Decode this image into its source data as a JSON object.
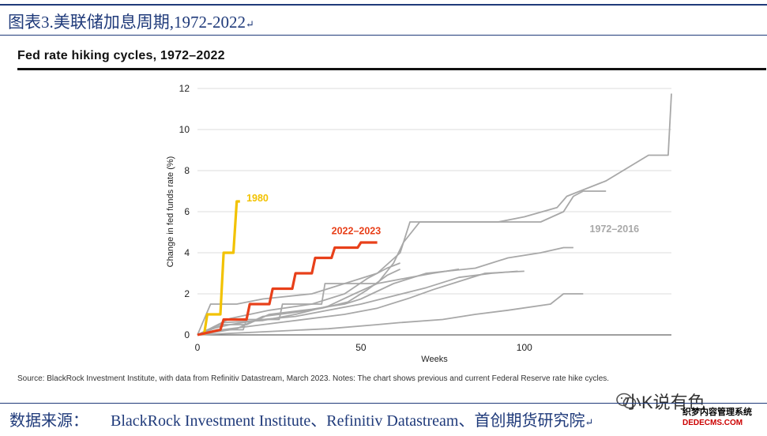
{
  "caption": {
    "text": "图表3.美联储加息周期,1972-2022",
    "return_mark": "↵"
  },
  "chart_data": {
    "type": "line",
    "title": "Fed rate hiking cycles, 1972–2022",
    "xlabel": "Weeks",
    "ylabel": "Change in fed funds rate (%)",
    "xlim": [
      0,
      145
    ],
    "ylim": [
      0,
      12
    ],
    "xticks": [
      0,
      50,
      100
    ],
    "yticks": [
      0,
      2,
      4,
      6,
      8,
      10,
      12
    ],
    "grid": true,
    "series": [
      {
        "name": "1980",
        "label": "1980",
        "color": "#f2c200",
        "role": "highlight",
        "points": [
          [
            2,
            0
          ],
          [
            3,
            1
          ],
          [
            7,
            1
          ],
          [
            8,
            4
          ],
          [
            11,
            4
          ],
          [
            12,
            6.5
          ],
          [
            13,
            6.5
          ]
        ]
      },
      {
        "name": "2022–2023",
        "label": "2022–2023",
        "color": "#e8401a",
        "role": "highlight",
        "points": [
          [
            0,
            0
          ],
          [
            7,
            0.25
          ],
          [
            8,
            0.75
          ],
          [
            15,
            0.75
          ],
          [
            16,
            1.5
          ],
          [
            22,
            1.5
          ],
          [
            23,
            2.25
          ],
          [
            29,
            2.25
          ],
          [
            30,
            3.0
          ],
          [
            35,
            3.0
          ],
          [
            36,
            3.75
          ],
          [
            41,
            3.75
          ],
          [
            42,
            4.25
          ],
          [
            49,
            4.25
          ],
          [
            50,
            4.5
          ],
          [
            55,
            4.5
          ]
        ]
      },
      {
        "name": "1972-2016 a",
        "color": "#a8a8a8",
        "role": "history",
        "points": [
          [
            0,
            0
          ],
          [
            6,
            0.25
          ],
          [
            14,
            0.25
          ],
          [
            15,
            0.75
          ],
          [
            25,
            0.75
          ],
          [
            26,
            1.5
          ],
          [
            38,
            1.5
          ],
          [
            39,
            2.5
          ],
          [
            55,
            2.5
          ],
          [
            60,
            3.5
          ],
          [
            63,
            4.5
          ],
          [
            68,
            5.5
          ],
          [
            92,
            5.5
          ],
          [
            100,
            5.75
          ],
          [
            110,
            6.2
          ],
          [
            113,
            6.75
          ],
          [
            125,
            7.5
          ],
          [
            138,
            8.75
          ],
          [
            144,
            8.75
          ],
          [
            145,
            11.75
          ],
          [
            150,
            11.75
          ]
        ]
      },
      {
        "name": "1972-2016 b",
        "color": "#a8a8a8",
        "role": "history",
        "points": [
          [
            0,
            0
          ],
          [
            4,
            1.5
          ],
          [
            12,
            1.5
          ],
          [
            20,
            1.75
          ],
          [
            35,
            2.0
          ],
          [
            45,
            2.5
          ],
          [
            55,
            3.0
          ],
          [
            62,
            4.0
          ],
          [
            65,
            5.5
          ],
          [
            105,
            5.5
          ],
          [
            112,
            6.0
          ],
          [
            115,
            6.75
          ],
          [
            118,
            7.0
          ],
          [
            125,
            7.0
          ]
        ]
      },
      {
        "name": "1972-2016 c",
        "color": "#a8a8a8",
        "role": "history",
        "points": [
          [
            0,
            0
          ],
          [
            8,
            0.5
          ],
          [
            15,
            0.5
          ],
          [
            22,
            1.0
          ],
          [
            35,
            1.25
          ],
          [
            45,
            1.5
          ],
          [
            50,
            1.75
          ],
          [
            60,
            2.5
          ],
          [
            70,
            3.0
          ],
          [
            85,
            3.25
          ],
          [
            95,
            3.75
          ],
          [
            105,
            4.0
          ],
          [
            112,
            4.25
          ],
          [
            115,
            4.25
          ]
        ]
      },
      {
        "name": "1972-2016 d",
        "color": "#a8a8a8",
        "role": "history",
        "points": [
          [
            0,
            0
          ],
          [
            3,
            0.25
          ],
          [
            10,
            0.5
          ],
          [
            20,
            0.75
          ],
          [
            30,
            0.9
          ],
          [
            40,
            1.2
          ],
          [
            50,
            1.5
          ],
          [
            60,
            1.9
          ],
          [
            70,
            2.3
          ],
          [
            80,
            2.8
          ],
          [
            90,
            3.0
          ],
          [
            98,
            3.1
          ]
        ]
      },
      {
        "name": "1972-2016 e",
        "color": "#a8a8a8",
        "role": "history",
        "points": [
          [
            0,
            0
          ],
          [
            5,
            0.2
          ],
          [
            15,
            0.4
          ],
          [
            25,
            0.6
          ],
          [
            35,
            0.8
          ],
          [
            45,
            1.0
          ],
          [
            55,
            1.3
          ],
          [
            65,
            1.8
          ],
          [
            72,
            2.2
          ],
          [
            80,
            2.6
          ],
          [
            88,
            3.0
          ],
          [
            100,
            3.1
          ]
        ]
      },
      {
        "name": "1972-2016 f",
        "color": "#a8a8a8",
        "role": "history",
        "points": [
          [
            0,
            0
          ],
          [
            8,
            0.6
          ],
          [
            20,
            0.7
          ],
          [
            30,
            1.0
          ],
          [
            40,
            1.4
          ],
          [
            48,
            2.0
          ],
          [
            55,
            2.5
          ],
          [
            65,
            2.8
          ],
          [
            72,
            3.0
          ],
          [
            80,
            3.2
          ]
        ]
      },
      {
        "name": "1972-2016 g",
        "color": "#a8a8a8",
        "role": "history",
        "points": [
          [
            0,
            0
          ],
          [
            10,
            0.8
          ],
          [
            22,
            1.2
          ],
          [
            35,
            1.5
          ],
          [
            45,
            2.0
          ],
          [
            52,
            2.75
          ],
          [
            58,
            3.25
          ],
          [
            62,
            3.5
          ]
        ]
      },
      {
        "name": "1972-2016 h",
        "color": "#a8a8a8",
        "role": "history",
        "points": [
          [
            0,
            0
          ],
          [
            20,
            0.15
          ],
          [
            40,
            0.3
          ],
          [
            55,
            0.5
          ],
          [
            62,
            0.6
          ],
          [
            75,
            0.75
          ],
          [
            85,
            1.0
          ],
          [
            95,
            1.2
          ],
          [
            108,
            1.5
          ],
          [
            112,
            2.0
          ],
          [
            118,
            2.0
          ]
        ]
      },
      {
        "name": "1972-2016 i",
        "color": "#a8a8a8",
        "role": "history",
        "points": [
          [
            0,
            0
          ],
          [
            12,
            0.3
          ],
          [
            20,
            0.9
          ],
          [
            30,
            1.1
          ],
          [
            38,
            1.3
          ],
          [
            46,
            1.6
          ],
          [
            52,
            2.2
          ],
          [
            58,
            2.9
          ],
          [
            62,
            3.2
          ]
        ]
      }
    ],
    "annotations": [
      {
        "text": "1980",
        "color": "#f2c200",
        "x": 15,
        "y": 6.5
      },
      {
        "text": "2022–2023",
        "color": "#e8401a",
        "x": 41,
        "y": 4.9
      },
      {
        "text": "1972–2016",
        "color": "#a8a8a8",
        "x": 120,
        "y": 5.0
      }
    ]
  },
  "source_note": "Source: BlackRock Investment Institute, with data from Refinitiv Datastream, March 2023. Notes: The chart shows previous and current Federal Reserve rate hike cycles.",
  "data_source": {
    "label": "数据来源：",
    "text": "BlackRock Investment Institute、Refinitiv Datastream、首创期货研究院",
    "return_mark": "↵"
  },
  "watermark": {
    "text": "小K说有色",
    "footer_cn": "织梦内容管理系统",
    "footer_en": "DEDECMS.COM"
  }
}
